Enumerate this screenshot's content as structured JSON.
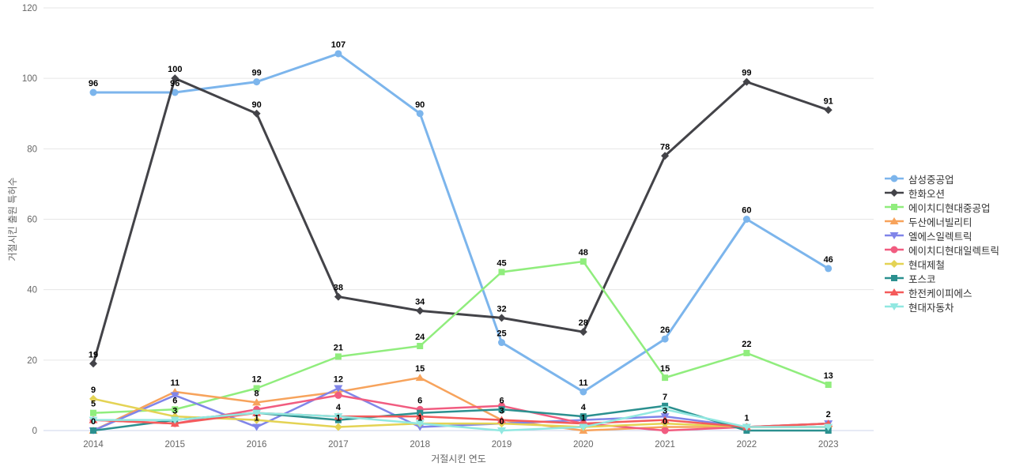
{
  "chart": {
    "xlabel": "거절시킨 연도",
    "ylabel": "거절시킨 출원 특허수"
  },
  "chart_data": {
    "type": "line",
    "title": "",
    "xlabel": "거절시킨 연도",
    "ylabel": "거절시킨 출원 특허수",
    "x": [
      "2014",
      "2015",
      "2016",
      "2017",
      "2018",
      "2019",
      "2020",
      "2021",
      "2022",
      "2023"
    ],
    "ylim": [
      0,
      120
    ],
    "yticks": [
      0,
      20,
      40,
      60,
      80,
      100,
      120
    ],
    "grid": "horizontal",
    "legend_position": "right",
    "series": [
      {
        "name": "삼성중공업",
        "color": "#7cb5ec",
        "marker": "circle",
        "line_width": 3,
        "values": [
          96,
          96,
          99,
          107,
          90,
          25,
          11,
          26,
          60,
          46
        ],
        "point_labels": [
          96,
          96,
          99,
          107,
          90,
          25,
          11,
          26,
          60,
          46
        ]
      },
      {
        "name": "한화오션",
        "color": "#434348",
        "marker": "diamond",
        "line_width": 3,
        "values": [
          19,
          100,
          90,
          38,
          34,
          32,
          28,
          78,
          99,
          91
        ],
        "point_labels": [
          19,
          100,
          90,
          38,
          34,
          32,
          28,
          78,
          99,
          91
        ]
      },
      {
        "name": "에이치디현대중공업",
        "color": "#90ed7d",
        "marker": "square",
        "line_width": 2.5,
        "values": [
          5,
          6,
          12,
          21,
          24,
          45,
          48,
          15,
          22,
          13
        ],
        "point_labels": [
          5,
          6,
          12,
          21,
          24,
          45,
          48,
          15,
          22,
          13
        ]
      },
      {
        "name": "두산에너빌리티",
        "color": "#f7a35c",
        "marker": "triangle",
        "line_width": 2.5,
        "values": [
          0,
          11,
          8,
          11,
          15,
          3,
          0,
          1,
          1,
          2
        ],
        "point_labels": [
          null,
          11,
          8,
          null,
          15,
          3,
          null,
          null,
          null,
          null
        ]
      },
      {
        "name": "엘에스일렉트릭",
        "color": "#8085e9",
        "marker": "triangle-down",
        "line_width": 2.5,
        "values": [
          0,
          10,
          1,
          12,
          1,
          2,
          3,
          4,
          1,
          2
        ],
        "point_labels": [
          null,
          null,
          1,
          12,
          1,
          null,
          null,
          null,
          null,
          null
        ]
      },
      {
        "name": "에이치디현대일렉트릭",
        "color": "#f15c80",
        "marker": "circle",
        "line_width": 2.5,
        "values": [
          3,
          2,
          6,
          10,
          6,
          7,
          2,
          0,
          1,
          1
        ],
        "point_labels": [
          null,
          null,
          null,
          null,
          6,
          null,
          null,
          0,
          null,
          null
        ]
      },
      {
        "name": "현대제철",
        "color": "#e4d354",
        "marker": "diamond",
        "line_width": 2.5,
        "values": [
          9,
          4,
          3,
          1,
          2,
          2,
          1,
          2,
          1,
          1
        ],
        "point_labels": [
          9,
          null,
          null,
          1,
          null,
          null,
          null,
          null,
          null,
          null
        ]
      },
      {
        "name": "포스코",
        "color": "#2b908f",
        "marker": "square",
        "line_width": 2.5,
        "values": [
          0,
          3,
          5,
          3,
          5,
          6,
          4,
          7,
          0,
          0
        ],
        "point_labels": [
          0,
          3,
          null,
          null,
          null,
          6,
          4,
          7,
          null,
          null
        ]
      },
      {
        "name": "한전케이피에스",
        "color": "#f45b5b",
        "marker": "triangle",
        "line_width": 2.5,
        "values": [
          3,
          2,
          5,
          4,
          4,
          3,
          2,
          3,
          1,
          2
        ],
        "point_labels": [
          null,
          null,
          null,
          null,
          null,
          null,
          null,
          3,
          null,
          2
        ]
      },
      {
        "name": "현대자동차",
        "color": "#91e8e1",
        "marker": "triangle-down",
        "line_width": 2.5,
        "values": [
          3,
          3,
          5,
          4,
          2,
          0,
          1,
          6,
          1,
          1
        ],
        "point_labels": [
          null,
          null,
          null,
          4,
          null,
          0,
          1,
          null,
          1,
          null
        ]
      }
    ]
  }
}
